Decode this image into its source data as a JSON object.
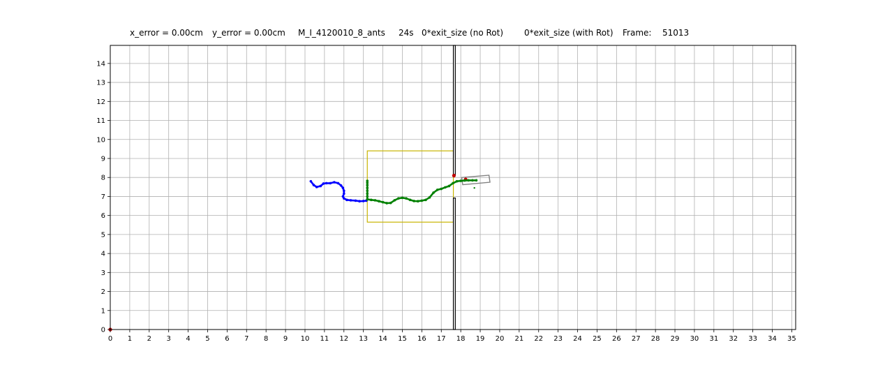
{
  "chart_data": {
    "type": "scatter",
    "title_parts": [
      "x_error = 0.00cm",
      "y_error = 0.00cm",
      "M_I_4120010_8_ants",
      "24s",
      "0*exit_size  (no Rot)",
      "0*exit_size  (with Rot)",
      "Frame:",
      "51013"
    ],
    "xlim": [
      0,
      35.2
    ],
    "ylim": [
      0,
      14.95
    ],
    "x_ticks": [
      "0",
      "1",
      "2",
      "3",
      "4",
      "5",
      "6",
      "7",
      "8",
      "9",
      "10",
      "11",
      "12",
      "13",
      "14",
      "15",
      "16",
      "17",
      "18",
      "19",
      "20",
      "21",
      "22",
      "23",
      "24",
      "25",
      "26",
      "27",
      "28",
      "29",
      "30",
      "31",
      "32",
      "33",
      "34",
      "35"
    ],
    "y_ticks": [
      "0",
      "1",
      "2",
      "3",
      "4",
      "5",
      "6",
      "7",
      "8",
      "9",
      "10",
      "11",
      "12",
      "13",
      "14"
    ],
    "grid": true,
    "colors": {
      "trail_blue": "#0000ff",
      "trail_green": "#008000",
      "carried_load": "#808080",
      "yellow_box": "#c8b400",
      "wall": "#000000",
      "marker_red": "#c00000",
      "grid": "#b0b0b0"
    },
    "series": [
      {
        "color": "blue",
        "x": [
          10.3,
          10.45,
          10.6,
          10.8,
          10.95,
          11.1,
          11.3,
          11.5,
          11.7,
          11.85,
          11.95,
          12.0,
          12.0,
          11.95,
          12.0,
          12.15,
          12.35,
          12.6,
          12.8,
          13.0,
          13.15
        ],
        "y": [
          7.8,
          7.6,
          7.5,
          7.55,
          7.68,
          7.7,
          7.7,
          7.75,
          7.7,
          7.58,
          7.45,
          7.3,
          7.15,
          7.0,
          6.9,
          6.82,
          6.8,
          6.78,
          6.75,
          6.76,
          6.78
        ]
      },
      {
        "color": "green",
        "x": [
          13.2,
          13.4,
          13.6,
          13.8,
          14.0,
          14.2,
          14.4,
          14.6,
          14.8,
          15.0,
          15.2,
          15.4,
          15.6,
          15.8,
          16.0,
          16.2,
          16.4,
          16.6,
          16.8,
          17.0,
          17.2,
          17.4,
          17.6,
          17.8,
          18.0,
          18.2,
          18.4,
          18.6,
          18.8
        ],
        "y": [
          6.85,
          6.82,
          6.8,
          6.75,
          6.7,
          6.65,
          6.66,
          6.8,
          6.9,
          6.93,
          6.9,
          6.82,
          6.76,
          6.75,
          6.78,
          6.82,
          6.95,
          7.2,
          7.35,
          7.4,
          7.48,
          7.55,
          7.7,
          7.8,
          7.82,
          7.84,
          7.85,
          7.85,
          7.85
        ]
      },
      {
        "color": "green",
        "x": [
          13.2,
          13.2,
          13.2,
          13.2,
          13.2,
          13.2,
          13.2,
          13.2
        ],
        "y": [
          6.85,
          7.0,
          7.15,
          7.3,
          7.45,
          7.6,
          7.72,
          7.82
        ]
      }
    ],
    "annotations": {
      "yellow_box": {
        "x": [
          13.2,
          17.62
        ],
        "y": [
          5.65,
          9.4
        ]
      },
      "wall": {
        "x": [
          17.62,
          17.72
        ],
        "gap_y": [
          6.92,
          14.95
        ],
        "lower_top": 6.92,
        "upper_bottom": 8.15
      },
      "carried_load": {
        "corners": [
          [
            18.1,
            7.62
          ],
          [
            19.5,
            7.75
          ],
          [
            19.45,
            8.12
          ],
          [
            18.05,
            8.0
          ]
        ]
      },
      "red_markers": [
        {
          "x": 17.65,
          "y": 8.1
        },
        {
          "x": 18.25,
          "y": 7.9
        },
        {
          "x": 0.0,
          "y": 0.0
        }
      ]
    }
  }
}
